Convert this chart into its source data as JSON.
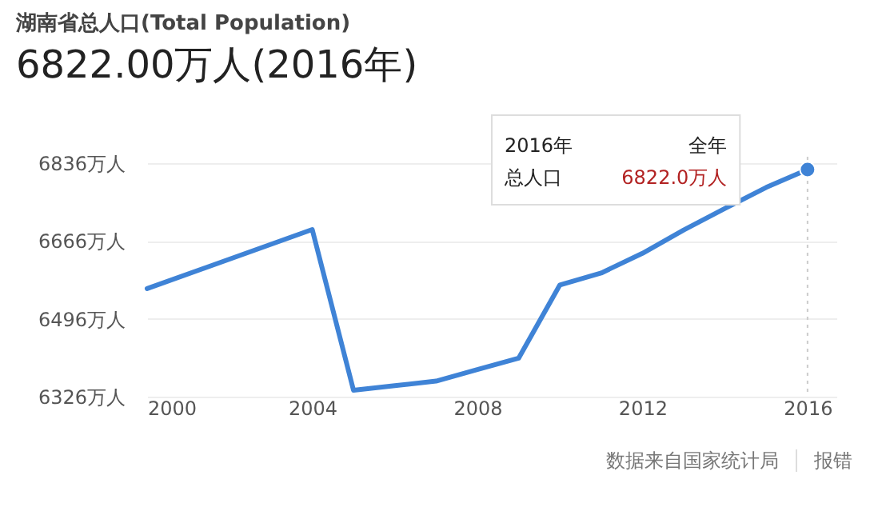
{
  "chart_data": {
    "type": "line",
    "title": "湖南省总人口(Total Population)",
    "subtitle": "6822.00万人(2016年)",
    "x": [
      2000,
      2004,
      2005,
      2006,
      2007,
      2008,
      2009,
      2010,
      2011,
      2012,
      2013,
      2014,
      2015,
      2016
    ],
    "series": [
      {
        "color": "#3f83d6",
        "values": [
          6562,
          6691,
          6340,
          6350,
          6360,
          6385,
          6410,
          6570,
          6596,
          6639,
          6690,
          6737,
          6783,
          6822
        ]
      },
      {
        "type": "scatter",
        "marker": "circle",
        "color": "#3f83d6",
        "x": [
          2016
        ],
        "values": [
          6822
        ]
      }
    ],
    "xlim": [
      2000,
      2016.7
    ],
    "xticks": [
      2000,
      2004,
      2008,
      2012,
      2016
    ],
    "ylim": [
      6326,
      6850
    ],
    "yticks": [
      {
        "value": 6326,
        "label": "6326万人"
      },
      {
        "value": 6496,
        "label": "6496万人"
      },
      {
        "value": 6666,
        "label": "6666万人"
      },
      {
        "value": 6836,
        "label": "6836万人"
      }
    ],
    "grid": "y",
    "line_style": "solid",
    "ref_lines": [
      {
        "axis": "x",
        "value": 2016,
        "label": null,
        "color": "#cccccc",
        "line_style": "dotted"
      }
    ],
    "annotations": [
      "2016年",
      "全年",
      "总人口",
      "6822.0万人",
      "数据来自国家统计局",
      "报错"
    ]
  }
}
